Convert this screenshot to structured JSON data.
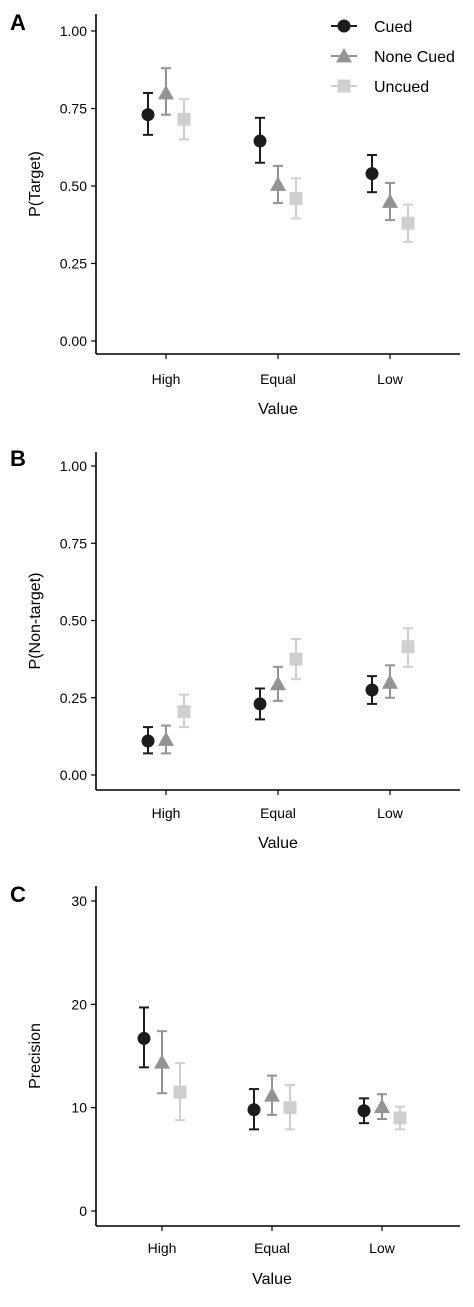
{
  "legend": {
    "position": "top-right",
    "entries": [
      {
        "label": "Cued",
        "marker": "circle",
        "color": "#1c1c1c"
      },
      {
        "label": "None Cued",
        "marker": "triangle",
        "color": "#939393"
      },
      {
        "label": "Uncued",
        "marker": "square",
        "color": "#cfcfcf"
      }
    ]
  },
  "chart_data": [
    {
      "panel": "A",
      "type": "scatter",
      "xlabel": "Value",
      "ylabel": "P(Target)",
      "categories": [
        "High",
        "Equal",
        "Low"
      ],
      "ylim": [
        0,
        1
      ],
      "yticks": [
        0,
        0.25,
        0.5,
        0.75,
        1
      ],
      "ytick_labels": [
        "0.00",
        "0.25",
        "0.50",
        "0.75",
        "1.00"
      ],
      "grid": false,
      "series": [
        {
          "name": "Cued",
          "values": [
            0.73,
            0.645,
            0.54
          ],
          "lower": [
            0.665,
            0.575,
            0.48
          ],
          "upper": [
            0.8,
            0.72,
            0.6
          ]
        },
        {
          "name": "None Cued",
          "values": [
            0.8,
            0.505,
            0.45
          ],
          "lower": [
            0.73,
            0.445,
            0.39
          ],
          "upper": [
            0.88,
            0.565,
            0.51
          ]
        },
        {
          "name": "Uncued",
          "values": [
            0.715,
            0.46,
            0.38
          ],
          "lower": [
            0.65,
            0.395,
            0.32
          ],
          "upper": [
            0.78,
            0.525,
            0.44
          ]
        }
      ]
    },
    {
      "panel": "B",
      "type": "scatter",
      "xlabel": "Value",
      "ylabel": "P(Non-target)",
      "categories": [
        "High",
        "Equal",
        "Low"
      ],
      "ylim": [
        0,
        1
      ],
      "yticks": [
        0,
        0.25,
        0.5,
        0.75,
        1
      ],
      "ytick_labels": [
        "0.00",
        "0.25",
        "0.50",
        "0.75",
        "1.00"
      ],
      "grid": false,
      "series": [
        {
          "name": "Cued",
          "values": [
            0.11,
            0.23,
            0.275
          ],
          "lower": [
            0.07,
            0.18,
            0.23
          ],
          "upper": [
            0.155,
            0.28,
            0.32
          ]
        },
        {
          "name": "None Cued",
          "values": [
            0.115,
            0.295,
            0.3
          ],
          "lower": [
            0.07,
            0.24,
            0.25
          ],
          "upper": [
            0.16,
            0.35,
            0.355
          ]
        },
        {
          "name": "Uncued",
          "values": [
            0.205,
            0.375,
            0.415
          ],
          "lower": [
            0.155,
            0.31,
            0.35
          ],
          "upper": [
            0.26,
            0.44,
            0.475
          ]
        }
      ]
    },
    {
      "panel": "C",
      "type": "scatter",
      "xlabel": "Value",
      "ylabel": "Precision",
      "categories": [
        "High",
        "Equal",
        "Low"
      ],
      "ylim": [
        0,
        30
      ],
      "yticks": [
        0,
        10,
        20,
        30
      ],
      "ytick_labels": [
        "0",
        "10",
        "20",
        "30"
      ],
      "grid": false,
      "series": [
        {
          "name": "Cued",
          "values": [
            16.7,
            9.8,
            9.7
          ],
          "lower": [
            13.9,
            7.9,
            8.5
          ],
          "upper": [
            19.7,
            11.8,
            10.9
          ]
        },
        {
          "name": "None Cued",
          "values": [
            14.4,
            11.2,
            10.1
          ],
          "lower": [
            11.4,
            9.3,
            8.9
          ],
          "upper": [
            17.4,
            13.1,
            11.3
          ]
        },
        {
          "name": "Uncued",
          "values": [
            11.5,
            10.0,
            9.0
          ],
          "lower": [
            8.8,
            7.9,
            7.9
          ],
          "upper": [
            14.3,
            12.2,
            10.1
          ]
        }
      ]
    }
  ]
}
